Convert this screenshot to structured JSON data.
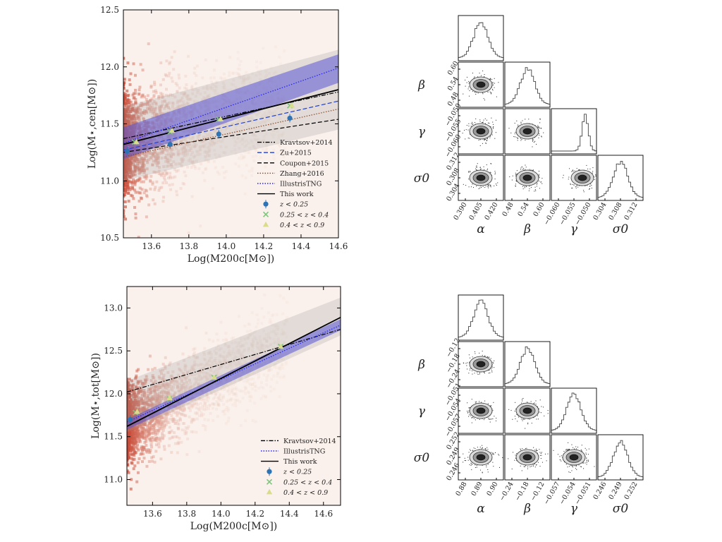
{
  "chart_data": [
    {
      "id": "top-scatter",
      "type": "scatter",
      "xlabel": "Log(M200c[M⊙])",
      "ylabel": "Log(M⋆,cen[M⊙])",
      "xlim": [
        13.45,
        14.6
      ],
      "ylim": [
        10.5,
        12.5
      ],
      "xticks": [
        "13.6",
        "13.8",
        "14.0",
        "14.2",
        "14.4",
        "14.6"
      ],
      "yticks": [
        "10.5",
        "11.0",
        "11.5",
        "12.0",
        "12.5"
      ],
      "legend_position": "lower-right",
      "lines": [
        {
          "name": "Kravtsov+2014",
          "style": "dashdot",
          "color": "#000000",
          "x": [
            13.45,
            14.6
          ],
          "y": [
            11.37,
            11.78
          ]
        },
        {
          "name": "Zu+2015",
          "style": "dashed",
          "color": "#1f3fd6",
          "x": [
            13.45,
            14.6
          ],
          "y": [
            11.27,
            11.7
          ]
        },
        {
          "name": "Coupon+2015",
          "style": "dashed",
          "color": "#000000",
          "x": [
            13.45,
            14.6
          ],
          "y": [
            11.25,
            11.54
          ]
        },
        {
          "name": "Zhang+2016",
          "style": "dotted",
          "color": "#8a4b2a",
          "x": [
            13.45,
            14.6
          ],
          "y": [
            11.21,
            11.63
          ]
        },
        {
          "name": "IllustrisTNG",
          "style": "dotted",
          "color": "#2222ee",
          "x": [
            13.45,
            14.6
          ],
          "y": [
            11.33,
            11.99
          ]
        },
        {
          "name": "This work",
          "style": "solid",
          "color": "#000000",
          "x": [
            13.45,
            14.6
          ],
          "y": [
            11.32,
            11.8
          ]
        }
      ],
      "bands": [
        {
          "color": "#5a55d6",
          "opacity": 0.55,
          "x": [
            13.45,
            14.6
          ],
          "y_low": [
            11.19,
            11.86
          ],
          "y_high": [
            11.47,
            12.11
          ]
        },
        {
          "color": "#9a9a9a",
          "opacity": 0.25,
          "x": [
            13.45,
            14.6
          ],
          "y_low": [
            11.0,
            11.45
          ],
          "y_high": [
            11.65,
            12.15
          ]
        }
      ],
      "points": [
        {
          "name": "z < 0.25",
          "marker": "circle",
          "color": "#2e74b5",
          "x": [
            13.47,
            13.7,
            13.96,
            14.34
          ],
          "y": [
            11.26,
            11.32,
            11.41,
            11.55
          ]
        },
        {
          "name": "0.25 < z < 0.4",
          "marker": "x",
          "color": "#7cc67c",
          "x": [
            13.51,
            13.7,
            13.96,
            14.34
          ],
          "y": [
            11.34,
            11.43,
            11.54,
            11.66
          ]
        },
        {
          "name": "0.4 < z < 0.9",
          "marker": "triangle",
          "color": "#d9dc8a",
          "x": [
            13.52,
            13.71,
            13.97,
            14.35
          ],
          "y": [
            11.34,
            11.44,
            11.54,
            11.66
          ]
        }
      ]
    },
    {
      "id": "top-corner",
      "type": "scatter",
      "params": [
        "α",
        "β",
        "γ",
        "σ0"
      ],
      "row_ticks": [
        [],
        [
          "0.60",
          "0.54",
          "0.48"
        ],
        [
          "−0.050",
          "−0.055",
          "−0.060"
        ],
        [
          "0.312",
          "0.308",
          "0.304"
        ]
      ],
      "col_ticks": [
        [
          "0.390",
          "0.405",
          "0.420"
        ],
        [
          "0.48",
          "0.54",
          "0.60"
        ],
        [
          "−0.060",
          "−0.055",
          "−0.050"
        ],
        [
          "0.304",
          "0.308",
          "0.312"
        ]
      ]
    },
    {
      "id": "bottom-scatter",
      "type": "scatter",
      "xlabel": "Log(M200c[M⊙])",
      "ylabel": "Log(M⋆,tot[M⊙])",
      "xlim": [
        13.45,
        14.7
      ],
      "ylim": [
        10.7,
        13.25
      ],
      "xticks": [
        "13.6",
        "13.8",
        "14.0",
        "14.2",
        "14.4",
        "14.6"
      ],
      "yticks": [
        "11.0",
        "11.5",
        "12.0",
        "12.5",
        "13.0"
      ],
      "legend_position": "lower-right",
      "lines": [
        {
          "name": "Kravtsov+2014",
          "style": "dashdot",
          "color": "#000000",
          "x": [
            13.45,
            14.7
          ],
          "y": [
            12.02,
            12.75
          ]
        },
        {
          "name": "IllustrisTNG",
          "style": "dotted",
          "color": "#2222ee",
          "x": [
            13.45,
            14.7
          ],
          "y": [
            11.67,
            12.8
          ]
        },
        {
          "name": "This work",
          "style": "solid",
          "color": "#000000",
          "x": [
            13.45,
            14.7
          ],
          "y": [
            11.62,
            12.89
          ]
        }
      ],
      "bands": [
        {
          "color": "#5a55d6",
          "opacity": 0.55,
          "x": [
            13.45,
            14.7
          ],
          "y_low": [
            11.58,
            12.74
          ],
          "y_high": [
            11.7,
            12.87
          ]
        },
        {
          "color": "#9a9a9a",
          "opacity": 0.25,
          "x": [
            13.45,
            14.7
          ],
          "y_low": [
            11.55,
            12.68
          ],
          "y_high": [
            12.15,
            13.12
          ]
        }
      ],
      "points": [
        {
          "name": "z < 0.25",
          "marker": "circle",
          "color": "#2e74b5",
          "x": [
            13.47
          ],
          "y": [
            11.7
          ]
        },
        {
          "name": "0.25 < z < 0.4",
          "marker": "x",
          "color": "#7cc67c",
          "x": [
            13.5,
            13.7,
            13.96,
            14.35
          ],
          "y": [
            11.78,
            11.94,
            12.19,
            12.55
          ]
        },
        {
          "name": "0.4 < z < 0.9",
          "marker": "triangle",
          "color": "#d9dc8a",
          "x": [
            13.51,
            13.7,
            13.96,
            14.35
          ],
          "y": [
            11.79,
            11.95,
            12.19,
            12.55
          ]
        }
      ]
    },
    {
      "id": "bottom-corner",
      "type": "scatter",
      "params": [
        "α",
        "β",
        "γ",
        "σ0"
      ],
      "row_ticks": [
        [],
        [
          "−0.12",
          "−0.18",
          "−0.24"
        ],
        [
          "−0.051",
          "−0.054",
          "−0.057"
        ],
        [
          "0.252",
          "0.249",
          "0.246"
        ]
      ],
      "col_ticks": [
        [
          "0.88",
          "0.89",
          "0.90"
        ],
        [
          "−0.24",
          "−0.18",
          "−0.12"
        ],
        [
          "−0.057",
          "−0.054",
          "−0.051"
        ],
        [
          "0.246",
          "0.249",
          "0.252"
        ]
      ]
    }
  ]
}
